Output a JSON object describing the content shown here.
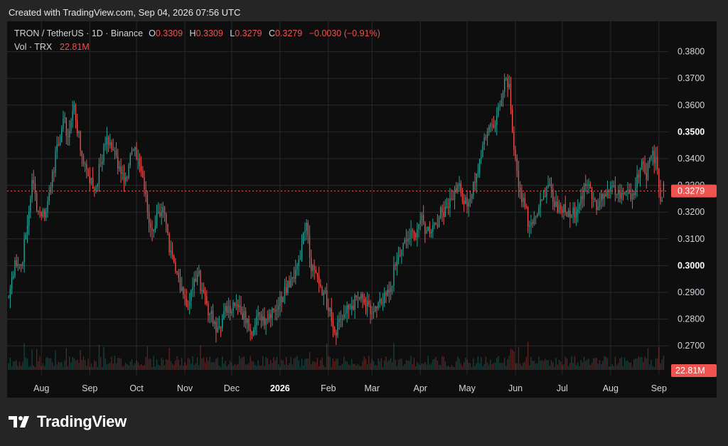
{
  "header": {
    "created_text": "Created with TradingView.com, Sep 04, 2026 07:56 UTC"
  },
  "legend": {
    "symbol": "TRON / TetherUS · 1D · Binance",
    "o_label": "O",
    "o_value": "0.3309",
    "h_label": "H",
    "h_value": "0.3309",
    "l_label": "L",
    "l_value": "0.3279",
    "c_label": "C",
    "c_value": "0.3279",
    "change": "−0.0030 (−0.91%)",
    "vol_label": "Vol · TRX",
    "vol_value": "22.81M"
  },
  "footer": {
    "brand": "TradingView"
  },
  "colors": {
    "up": "#26a69a",
    "down": "#ef5350",
    "background": "#0e0e0e",
    "grid": "#2a2a2a",
    "text": "#d1d4dc"
  },
  "chart_data": {
    "type": "candlestick",
    "symbol": "TRON / TetherUS",
    "interval": "1D",
    "exchange": "Binance",
    "ylim": [
      0.265,
      0.39
    ],
    "y_ticks": [
      "0.3800",
      "0.3700",
      "0.3600",
      "0.3500",
      "0.3400",
      "0.3300",
      "0.3200",
      "0.3100",
      "0.3000",
      "0.2900",
      "0.2800",
      "0.2700"
    ],
    "x_ticks": [
      {
        "date": "2025-08-01",
        "label": "Aug"
      },
      {
        "date": "2025-09-01",
        "label": "Sep"
      },
      {
        "date": "2025-10-01",
        "label": "Oct"
      },
      {
        "date": "2025-11-01",
        "label": "Nov"
      },
      {
        "date": "2025-12-01",
        "label": "Dec"
      },
      {
        "date": "2026-01-01",
        "label": "2026"
      },
      {
        "date": "2026-02-01",
        "label": "Feb"
      },
      {
        "date": "2026-03-01",
        "label": "Mar"
      },
      {
        "date": "2026-04-01",
        "label": "Apr"
      },
      {
        "date": "2026-05-01",
        "label": "May"
      },
      {
        "date": "2026-06-01",
        "label": "Jun"
      },
      {
        "date": "2026-07-01",
        "label": "Jul"
      },
      {
        "date": "2026-08-01",
        "label": "Aug"
      },
      {
        "date": "2026-09-01",
        "label": "Sep"
      }
    ],
    "last_price": 0.3279,
    "last_price_label": "0.3279",
    "last_volume_label": "22.81M",
    "price_anchors": [
      {
        "date": "2025-07-11",
        "close": 0.288
      },
      {
        "date": "2025-07-15",
        "close": 0.302
      },
      {
        "date": "2025-07-19",
        "close": 0.3
      },
      {
        "date": "2025-07-23",
        "close": 0.315
      },
      {
        "date": "2025-07-26",
        "close": 0.332
      },
      {
        "date": "2025-07-30",
        "close": 0.32
      },
      {
        "date": "2025-08-04",
        "close": 0.32
      },
      {
        "date": "2025-08-08",
        "close": 0.335
      },
      {
        "date": "2025-08-12",
        "close": 0.345
      },
      {
        "date": "2025-08-15",
        "close": 0.355
      },
      {
        "date": "2025-08-18",
        "close": 0.348
      },
      {
        "date": "2025-08-22",
        "close": 0.36
      },
      {
        "date": "2025-08-26",
        "close": 0.343
      },
      {
        "date": "2025-08-30",
        "close": 0.336
      },
      {
        "date": "2025-09-04",
        "close": 0.328
      },
      {
        "date": "2025-09-08",
        "close": 0.338
      },
      {
        "date": "2025-09-12",
        "close": 0.348
      },
      {
        "date": "2025-09-16",
        "close": 0.343
      },
      {
        "date": "2025-09-20",
        "close": 0.337
      },
      {
        "date": "2025-09-24",
        "close": 0.333
      },
      {
        "date": "2025-09-28",
        "close": 0.343
      },
      {
        "date": "2025-10-02",
        "close": 0.34
      },
      {
        "date": "2025-10-05",
        "close": 0.333
      },
      {
        "date": "2025-10-09",
        "close": 0.316
      },
      {
        "date": "2025-10-11",
        "close": 0.313
      },
      {
        "date": "2025-10-15",
        "close": 0.32
      },
      {
        "date": "2025-10-18",
        "close": 0.322
      },
      {
        "date": "2025-10-22",
        "close": 0.305
      },
      {
        "date": "2025-10-26",
        "close": 0.298
      },
      {
        "date": "2025-10-30",
        "close": 0.292
      },
      {
        "date": "2025-11-03",
        "close": 0.285
      },
      {
        "date": "2025-11-06",
        "close": 0.292
      },
      {
        "date": "2025-11-09",
        "close": 0.297
      },
      {
        "date": "2025-11-13",
        "close": 0.29
      },
      {
        "date": "2025-11-17",
        "close": 0.282
      },
      {
        "date": "2025-11-21",
        "close": 0.275
      },
      {
        "date": "2025-11-25",
        "close": 0.28
      },
      {
        "date": "2025-11-29",
        "close": 0.285
      },
      {
        "date": "2025-12-03",
        "close": 0.285
      },
      {
        "date": "2025-12-07",
        "close": 0.282
      },
      {
        "date": "2025-12-11",
        "close": 0.28
      },
      {
        "date": "2025-12-15",
        "close": 0.276
      },
      {
        "date": "2025-12-19",
        "close": 0.282
      },
      {
        "date": "2025-12-23",
        "close": 0.28
      },
      {
        "date": "2025-12-27",
        "close": 0.284
      },
      {
        "date": "2025-12-31",
        "close": 0.285
      },
      {
        "date": "2026-01-04",
        "close": 0.292
      },
      {
        "date": "2026-01-08",
        "close": 0.295
      },
      {
        "date": "2026-01-12",
        "close": 0.3
      },
      {
        "date": "2026-01-15",
        "close": 0.308
      },
      {
        "date": "2026-01-18",
        "close": 0.316
      },
      {
        "date": "2026-01-21",
        "close": 0.298
      },
      {
        "date": "2026-01-25",
        "close": 0.296
      },
      {
        "date": "2026-01-29",
        "close": 0.29
      },
      {
        "date": "2026-02-02",
        "close": 0.284
      },
      {
        "date": "2026-02-05",
        "close": 0.275
      },
      {
        "date": "2026-02-08",
        "close": 0.28
      },
      {
        "date": "2026-02-12",
        "close": 0.282
      },
      {
        "date": "2026-02-16",
        "close": 0.285
      },
      {
        "date": "2026-02-20",
        "close": 0.288
      },
      {
        "date": "2026-02-24",
        "close": 0.286
      },
      {
        "date": "2026-02-28",
        "close": 0.282
      },
      {
        "date": "2026-03-04",
        "close": 0.284
      },
      {
        "date": "2026-03-08",
        "close": 0.286
      },
      {
        "date": "2026-03-12",
        "close": 0.29
      },
      {
        "date": "2026-03-16",
        "close": 0.3
      },
      {
        "date": "2026-03-20",
        "close": 0.306
      },
      {
        "date": "2026-03-24",
        "close": 0.31
      },
      {
        "date": "2026-03-28",
        "close": 0.312
      },
      {
        "date": "2026-04-01",
        "close": 0.317
      },
      {
        "date": "2026-04-05",
        "close": 0.313
      },
      {
        "date": "2026-04-09",
        "close": 0.315
      },
      {
        "date": "2026-04-13",
        "close": 0.318
      },
      {
        "date": "2026-04-17",
        "close": 0.322
      },
      {
        "date": "2026-04-21",
        "close": 0.325
      },
      {
        "date": "2026-04-25",
        "close": 0.33
      },
      {
        "date": "2026-04-29",
        "close": 0.323
      },
      {
        "date": "2026-05-03",
        "close": 0.325
      },
      {
        "date": "2026-05-06",
        "close": 0.331
      },
      {
        "date": "2026-05-09",
        "close": 0.34
      },
      {
        "date": "2026-05-12",
        "close": 0.348
      },
      {
        "date": "2026-05-16",
        "close": 0.353
      },
      {
        "date": "2026-05-20",
        "close": 0.356
      },
      {
        "date": "2026-05-23",
        "close": 0.362
      },
      {
        "date": "2026-05-26",
        "close": 0.37
      },
      {
        "date": "2026-05-28",
        "close": 0.368
      },
      {
        "date": "2026-05-30",
        "close": 0.35
      },
      {
        "date": "2026-06-01",
        "close": 0.34
      },
      {
        "date": "2026-06-04",
        "close": 0.328
      },
      {
        "date": "2026-06-07",
        "close": 0.322
      },
      {
        "date": "2026-06-10",
        "close": 0.315
      },
      {
        "date": "2026-06-13",
        "close": 0.318
      },
      {
        "date": "2026-06-16",
        "close": 0.322
      },
      {
        "date": "2026-06-19",
        "close": 0.326
      },
      {
        "date": "2026-06-22",
        "close": 0.33
      },
      {
        "date": "2026-06-25",
        "close": 0.324
      },
      {
        "date": "2026-06-28",
        "close": 0.32
      },
      {
        "date": "2026-07-02",
        "close": 0.323
      },
      {
        "date": "2026-07-06",
        "close": 0.318
      },
      {
        "date": "2026-07-10",
        "close": 0.32
      },
      {
        "date": "2026-07-13",
        "close": 0.326
      },
      {
        "date": "2026-07-17",
        "close": 0.33
      },
      {
        "date": "2026-07-21",
        "close": 0.325
      },
      {
        "date": "2026-07-24",
        "close": 0.322
      },
      {
        "date": "2026-07-27",
        "close": 0.325
      },
      {
        "date": "2026-07-30",
        "close": 0.328
      },
      {
        "date": "2026-08-03",
        "close": 0.33
      },
      {
        "date": "2026-08-07",
        "close": 0.325
      },
      {
        "date": "2026-08-11",
        "close": 0.328
      },
      {
        "date": "2026-08-15",
        "close": 0.327
      },
      {
        "date": "2026-08-19",
        "close": 0.333
      },
      {
        "date": "2026-08-22",
        "close": 0.338
      },
      {
        "date": "2026-08-24",
        "close": 0.332
      },
      {
        "date": "2026-08-26",
        "close": 0.34
      },
      {
        "date": "2026-08-28",
        "close": 0.343
      },
      {
        "date": "2026-08-31",
        "close": 0.336
      },
      {
        "date": "2026-09-02",
        "close": 0.324
      },
      {
        "date": "2026-09-04",
        "close": 0.3279
      }
    ]
  }
}
